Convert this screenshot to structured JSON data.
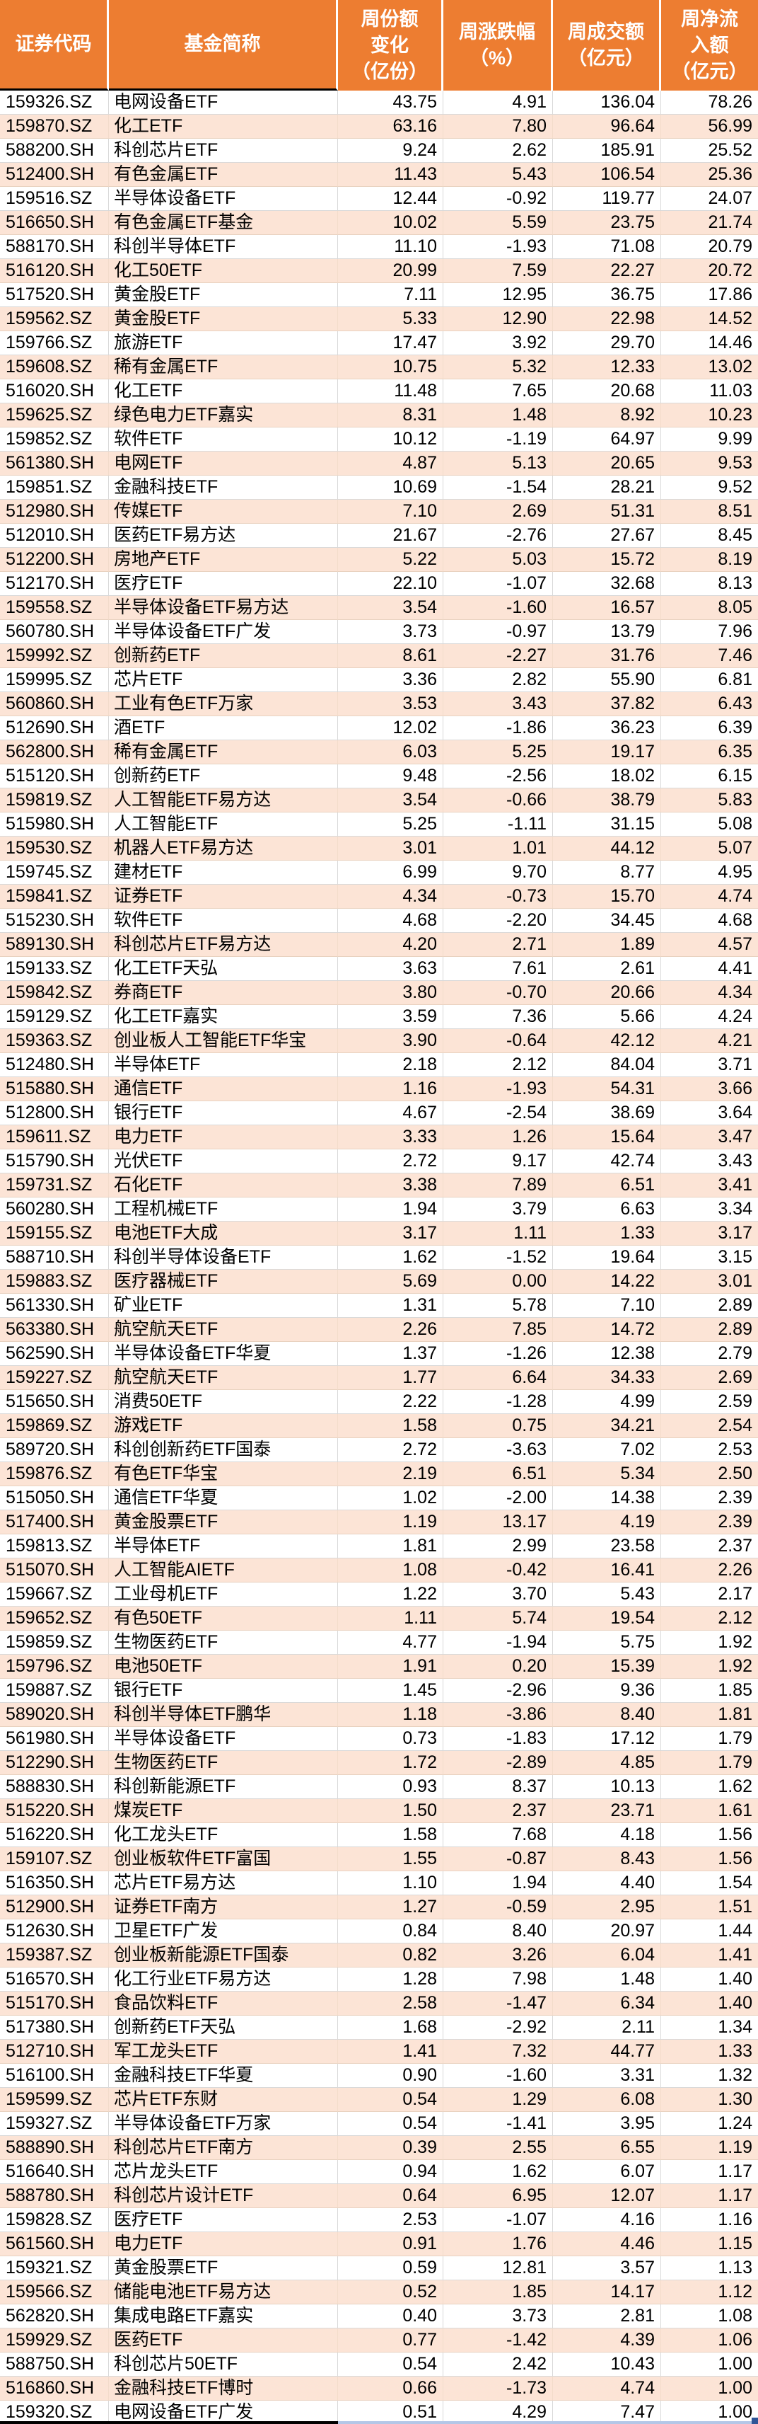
{
  "colors": {
    "header_bg": "#ED7D31",
    "header_text": "#FFFFFF",
    "row_bg": "#FFFFFF",
    "row_alt_bg": "#FCE4D6",
    "grid_line": "#D9D9D9",
    "body_text": "#000000",
    "selection_border": "#000000",
    "selection_strip": "#B4C7E7",
    "fill_handle": "#2F5597"
  },
  "table": {
    "columns": [
      {
        "id": "code",
        "lines": [
          "证券代码"
        ]
      },
      {
        "id": "name",
        "lines": [
          "基金简称"
        ]
      },
      {
        "id": "share-change",
        "lines": [
          "周份额",
          "变化",
          "（亿份）"
        ]
      },
      {
        "id": "pct-change",
        "lines": [
          "周涨跌幅",
          "（%）"
        ]
      },
      {
        "id": "turnover",
        "lines": [
          "周成交额",
          "（亿元）"
        ]
      },
      {
        "id": "net-inflow",
        "lines": [
          "周净流",
          "入额",
          "（亿元）"
        ]
      }
    ],
    "cell_names": [
      "code-cell",
      "fund-name-cell",
      "share-change-cell",
      "pct-change-cell",
      "turnover-cell",
      "net-inflow-cell"
    ],
    "rows": [
      [
        "159326.SZ",
        "电网设备ETF",
        "43.75",
        "4.91",
        "136.04",
        "78.26"
      ],
      [
        "159870.SZ",
        "化工ETF",
        "63.16",
        "7.80",
        "96.64",
        "56.99"
      ],
      [
        "588200.SH",
        "科创芯片ETF",
        "9.24",
        "2.62",
        "185.91",
        "25.52"
      ],
      [
        "512400.SH",
        "有色金属ETF",
        "11.43",
        "5.43",
        "106.54",
        "25.36"
      ],
      [
        "159516.SZ",
        "半导体设备ETF",
        "12.44",
        "-0.92",
        "119.77",
        "24.07"
      ],
      [
        "516650.SH",
        "有色金属ETF基金",
        "10.02",
        "5.59",
        "23.75",
        "21.74"
      ],
      [
        "588170.SH",
        "科创半导体ETF",
        "11.10",
        "-1.93",
        "71.08",
        "20.79"
      ],
      [
        "516120.SH",
        "化工50ETF",
        "20.99",
        "7.59",
        "22.27",
        "20.72"
      ],
      [
        "517520.SH",
        "黄金股ETF",
        "7.11",
        "12.95",
        "36.75",
        "17.86"
      ],
      [
        "159562.SZ",
        "黄金股ETF",
        "5.33",
        "12.90",
        "22.98",
        "14.52"
      ],
      [
        "159766.SZ",
        "旅游ETF",
        "17.47",
        "3.92",
        "29.70",
        "14.46"
      ],
      [
        "159608.SZ",
        "稀有金属ETF",
        "10.75",
        "5.32",
        "12.33",
        "13.02"
      ],
      [
        "516020.SH",
        "化工ETF",
        "11.48",
        "7.65",
        "20.68",
        "11.03"
      ],
      [
        "159625.SZ",
        "绿色电力ETF嘉实",
        "8.31",
        "1.48",
        "8.92",
        "10.23"
      ],
      [
        "159852.SZ",
        "软件ETF",
        "10.12",
        "-1.19",
        "64.97",
        "9.99"
      ],
      [
        "561380.SH",
        "电网ETF",
        "4.87",
        "5.13",
        "20.65",
        "9.53"
      ],
      [
        "159851.SZ",
        "金融科技ETF",
        "10.69",
        "-1.54",
        "28.21",
        "9.52"
      ],
      [
        "512980.SH",
        "传媒ETF",
        "7.10",
        "2.69",
        "51.31",
        "8.51"
      ],
      [
        "512010.SH",
        "医药ETF易方达",
        "21.67",
        "-2.76",
        "27.67",
        "8.45"
      ],
      [
        "512200.SH",
        "房地产ETF",
        "5.22",
        "5.03",
        "15.72",
        "8.19"
      ],
      [
        "512170.SH",
        "医疗ETF",
        "22.10",
        "-1.07",
        "32.68",
        "8.13"
      ],
      [
        "159558.SZ",
        "半导体设备ETF易方达",
        "3.54",
        "-1.60",
        "16.57",
        "8.05"
      ],
      [
        "560780.SH",
        "半导体设备ETF广发",
        "3.73",
        "-0.97",
        "13.79",
        "7.96"
      ],
      [
        "159992.SZ",
        "创新药ETF",
        "8.61",
        "-2.27",
        "31.76",
        "7.46"
      ],
      [
        "159995.SZ",
        "芯片ETF",
        "3.36",
        "2.82",
        "55.90",
        "6.81"
      ],
      [
        "560860.SH",
        "工业有色ETF万家",
        "3.53",
        "3.43",
        "37.82",
        "6.43"
      ],
      [
        "512690.SH",
        "酒ETF",
        "12.02",
        "-1.86",
        "36.23",
        "6.39"
      ],
      [
        "562800.SH",
        "稀有金属ETF",
        "6.03",
        "5.25",
        "19.17",
        "6.35"
      ],
      [
        "515120.SH",
        "创新药ETF",
        "9.48",
        "-2.56",
        "18.02",
        "6.15"
      ],
      [
        "159819.SZ",
        "人工智能ETF易方达",
        "3.54",
        "-0.66",
        "38.79",
        "5.83"
      ],
      [
        "515980.SH",
        "人工智能ETF",
        "5.25",
        "-1.11",
        "31.15",
        "5.08"
      ],
      [
        "159530.SZ",
        "机器人ETF易方达",
        "3.01",
        "1.01",
        "44.12",
        "5.07"
      ],
      [
        "159745.SZ",
        "建材ETF",
        "6.99",
        "9.70",
        "8.77",
        "4.95"
      ],
      [
        "159841.SZ",
        "证券ETF",
        "4.34",
        "-0.73",
        "15.70",
        "4.74"
      ],
      [
        "515230.SH",
        "软件ETF",
        "4.68",
        "-2.20",
        "34.45",
        "4.68"
      ],
      [
        "589130.SH",
        "科创芯片ETF易方达",
        "4.20",
        "2.71",
        "1.89",
        "4.57"
      ],
      [
        "159133.SZ",
        "化工ETF天弘",
        "3.63",
        "7.61",
        "2.61",
        "4.41"
      ],
      [
        "159842.SZ",
        "券商ETF",
        "3.80",
        "-0.70",
        "20.66",
        "4.34"
      ],
      [
        "159129.SZ",
        "化工ETF嘉实",
        "3.59",
        "7.36",
        "5.66",
        "4.24"
      ],
      [
        "159363.SZ",
        "创业板人工智能ETF华宝",
        "3.90",
        "-0.64",
        "42.12",
        "4.21"
      ],
      [
        "512480.SH",
        "半导体ETF",
        "2.18",
        "2.12",
        "84.04",
        "3.71"
      ],
      [
        "515880.SH",
        "通信ETF",
        "1.16",
        "-1.93",
        "54.31",
        "3.66"
      ],
      [
        "512800.SH",
        "银行ETF",
        "4.67",
        "-2.54",
        "38.69",
        "3.64"
      ],
      [
        "159611.SZ",
        "电力ETF",
        "3.33",
        "1.26",
        "15.64",
        "3.47"
      ],
      [
        "515790.SH",
        "光伏ETF",
        "2.72",
        "9.17",
        "42.74",
        "3.43"
      ],
      [
        "159731.SZ",
        "石化ETF",
        "3.38",
        "7.89",
        "6.51",
        "3.41"
      ],
      [
        "560280.SH",
        "工程机械ETF",
        "1.94",
        "3.79",
        "6.63",
        "3.34"
      ],
      [
        "159155.SZ",
        "电池ETF大成",
        "3.17",
        "1.11",
        "1.33",
        "3.17"
      ],
      [
        "588710.SH",
        "科创半导体设备ETF",
        "1.62",
        "-1.52",
        "19.64",
        "3.15"
      ],
      [
        "159883.SZ",
        "医疗器械ETF",
        "5.69",
        "0.00",
        "14.22",
        "3.01"
      ],
      [
        "561330.SH",
        "矿业ETF",
        "1.31",
        "5.78",
        "7.10",
        "2.89"
      ],
      [
        "563380.SH",
        "航空航天ETF",
        "2.26",
        "7.85",
        "14.72",
        "2.89"
      ],
      [
        "562590.SH",
        "半导体设备ETF华夏",
        "1.37",
        "-1.26",
        "12.38",
        "2.79"
      ],
      [
        "159227.SZ",
        "航空航天ETF",
        "1.77",
        "6.64",
        "34.33",
        "2.69"
      ],
      [
        "515650.SH",
        "消费50ETF",
        "2.22",
        "-1.28",
        "4.99",
        "2.59"
      ],
      [
        "159869.SZ",
        "游戏ETF",
        "1.58",
        "0.75",
        "34.21",
        "2.54"
      ],
      [
        "589720.SH",
        "科创创新药ETF国泰",
        "2.72",
        "-3.63",
        "7.02",
        "2.53"
      ],
      [
        "159876.SZ",
        "有色ETF华宝",
        "2.19",
        "6.51",
        "5.34",
        "2.50"
      ],
      [
        "515050.SH",
        "通信ETF华夏",
        "1.02",
        "-2.00",
        "14.38",
        "2.39"
      ],
      [
        "517400.SH",
        "黄金股票ETF",
        "1.19",
        "13.17",
        "4.19",
        "2.39"
      ],
      [
        "159813.SZ",
        "半导体ETF",
        "1.81",
        "2.99",
        "23.58",
        "2.37"
      ],
      [
        "515070.SH",
        "人工智能AIETF",
        "1.08",
        "-0.42",
        "16.41",
        "2.26"
      ],
      [
        "159667.SZ",
        "工业母机ETF",
        "1.22",
        "3.70",
        "5.43",
        "2.17"
      ],
      [
        "159652.SZ",
        "有色50ETF",
        "1.11",
        "5.74",
        "19.54",
        "2.12"
      ],
      [
        "159859.SZ",
        "生物医药ETF",
        "4.77",
        "-1.94",
        "5.75",
        "1.92"
      ],
      [
        "159796.SZ",
        "电池50ETF",
        "1.91",
        "0.20",
        "15.39",
        "1.92"
      ],
      [
        "159887.SZ",
        "银行ETF",
        "1.45",
        "-2.96",
        "9.36",
        "1.85"
      ],
      [
        "589020.SH",
        "科创半导体ETF鹏华",
        "1.18",
        "-3.86",
        "8.40",
        "1.81"
      ],
      [
        "561980.SH",
        "半导体设备ETF",
        "0.73",
        "-1.83",
        "17.12",
        "1.79"
      ],
      [
        "512290.SH",
        "生物医药ETF",
        "1.72",
        "-2.89",
        "4.85",
        "1.79"
      ],
      [
        "588830.SH",
        "科创新能源ETF",
        "0.93",
        "8.37",
        "10.13",
        "1.62"
      ],
      [
        "515220.SH",
        "煤炭ETF",
        "1.50",
        "2.37",
        "23.71",
        "1.61"
      ],
      [
        "516220.SH",
        "化工龙头ETF",
        "1.58",
        "7.68",
        "4.18",
        "1.56"
      ],
      [
        "159107.SZ",
        "创业板软件ETF富国",
        "1.55",
        "-0.87",
        "8.43",
        "1.56"
      ],
      [
        "516350.SH",
        "芯片ETF易方达",
        "1.10",
        "1.94",
        "4.40",
        "1.54"
      ],
      [
        "512900.SH",
        "证券ETF南方",
        "1.27",
        "-0.59",
        "2.95",
        "1.51"
      ],
      [
        "512630.SH",
        "卫星ETF广发",
        "0.84",
        "8.40",
        "20.97",
        "1.44"
      ],
      [
        "159387.SZ",
        "创业板新能源ETF国泰",
        "0.82",
        "3.26",
        "6.04",
        "1.41"
      ],
      [
        "516570.SH",
        "化工行业ETF易方达",
        "1.28",
        "7.98",
        "1.48",
        "1.40"
      ],
      [
        "515170.SH",
        "食品饮料ETF",
        "2.58",
        "-1.47",
        "6.34",
        "1.40"
      ],
      [
        "517380.SH",
        "创新药ETF天弘",
        "1.68",
        "-2.92",
        "2.11",
        "1.34"
      ],
      [
        "512710.SH",
        "军工龙头ETF",
        "1.41",
        "7.32",
        "44.77",
        "1.33"
      ],
      [
        "516100.SH",
        "金融科技ETF华夏",
        "0.90",
        "-1.60",
        "3.31",
        "1.32"
      ],
      [
        "159599.SZ",
        "芯片ETF东财",
        "0.54",
        "1.29",
        "6.08",
        "1.30"
      ],
      [
        "159327.SZ",
        "半导体设备ETF万家",
        "0.54",
        "-1.41",
        "3.95",
        "1.24"
      ],
      [
        "588890.SH",
        "科创芯片ETF南方",
        "0.39",
        "2.55",
        "6.55",
        "1.19"
      ],
      [
        "516640.SH",
        "芯片龙头ETF",
        "0.94",
        "1.62",
        "6.07",
        "1.17"
      ],
      [
        "588780.SH",
        "科创芯片设计ETF",
        "0.64",
        "6.95",
        "12.07",
        "1.17"
      ],
      [
        "159828.SZ",
        "医疗ETF",
        "2.53",
        "-1.07",
        "4.16",
        "1.16"
      ],
      [
        "561560.SH",
        "电力ETF",
        "0.91",
        "1.76",
        "4.46",
        "1.15"
      ],
      [
        "159321.SZ",
        "黄金股票ETF",
        "0.59",
        "12.81",
        "3.57",
        "1.13"
      ],
      [
        "159566.SZ",
        "储能电池ETF易方达",
        "0.52",
        "1.85",
        "14.17",
        "1.12"
      ],
      [
        "562820.SH",
        "集成电路ETF嘉实",
        "0.40",
        "3.73",
        "2.81",
        "1.08"
      ],
      [
        "159929.SZ",
        "医药ETF",
        "0.77",
        "-1.42",
        "4.39",
        "1.06"
      ],
      [
        "588750.SH",
        "科创芯片50ETF",
        "0.54",
        "2.42",
        "10.43",
        "1.00"
      ],
      [
        "516860.SH",
        "金融科技ETF博时",
        "0.66",
        "-1.73",
        "4.74",
        "1.00"
      ],
      [
        "159320.SZ",
        "电网设备ETF广发",
        "0.51",
        "4.29",
        "7.47",
        "1.00"
      ]
    ]
  }
}
